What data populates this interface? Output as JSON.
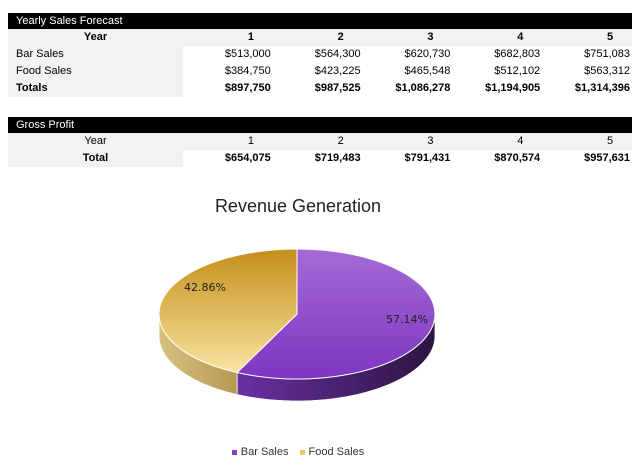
{
  "sales": {
    "title": "Yearly Sales Forecast",
    "year_label": "Year",
    "years": [
      "1",
      "2",
      "3",
      "4",
      "5"
    ],
    "rows": [
      {
        "label": "Bar Sales",
        "values": [
          "$513,000",
          "$564,300",
          "$620,730",
          "$682,803",
          "$751,083"
        ]
      },
      {
        "label": "Food Sales",
        "values": [
          "$384,750",
          "$423,225",
          "$465,548",
          "$512,102",
          "$563,312"
        ]
      }
    ],
    "totals": {
      "label": "Totals",
      "values": [
        "$897,750",
        "$987,525",
        "$1,086,278",
        "$1,194,905",
        "$1,314,396"
      ]
    }
  },
  "profit": {
    "title": "Gross Profit",
    "year_label": "Year",
    "years": [
      "1",
      "2",
      "3",
      "4",
      "5"
    ],
    "total": {
      "label": "Total",
      "values": [
        "$654,075",
        "$719,483",
        "$791,431",
        "$870,574",
        "$957,631"
      ]
    }
  },
  "chart_data": {
    "type": "pie",
    "title": "Revenue Generation",
    "style": "3d",
    "categories": [
      "Bar Sales",
      "Food Sales"
    ],
    "values": [
      57.14,
      42.86
    ],
    "labels": [
      "57.14%",
      "42.86%"
    ],
    "colors": [
      "#8a3fc4",
      "#e8c66a"
    ],
    "legend_placement": "bottom"
  }
}
